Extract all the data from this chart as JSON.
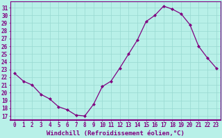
{
  "x": [
    0,
    1,
    2,
    3,
    4,
    5,
    6,
    7,
    8,
    9,
    10,
    11,
    12,
    13,
    14,
    15,
    16,
    17,
    18,
    19,
    20,
    21,
    22,
    23
  ],
  "y": [
    22.5,
    21.5,
    21.0,
    19.8,
    19.2,
    18.2,
    17.8,
    17.1,
    17.0,
    18.5,
    20.8,
    21.5,
    23.2,
    25.0,
    26.8,
    29.2,
    30.0,
    31.2,
    30.8,
    30.2,
    28.8,
    26.0,
    24.5,
    23.2
  ],
  "line_color": "#800080",
  "marker": "D",
  "marker_size": 2.0,
  "bg_color": "#b8f0e8",
  "grid_color": "#98d8d0",
  "xlabel": "Windchill (Refroidissement éolien,°C)",
  "ylabel_ticks": [
    17,
    18,
    19,
    20,
    21,
    22,
    23,
    24,
    25,
    26,
    27,
    28,
    29,
    30,
    31
  ],
  "xlim": [
    -0.5,
    23.5
  ],
  "ylim": [
    16.5,
    31.8
  ],
  "axis_color": "#800080",
  "tick_color": "#800080",
  "label_fontsize": 6.5,
  "tick_fontsize": 5.5,
  "linewidth": 0.9
}
